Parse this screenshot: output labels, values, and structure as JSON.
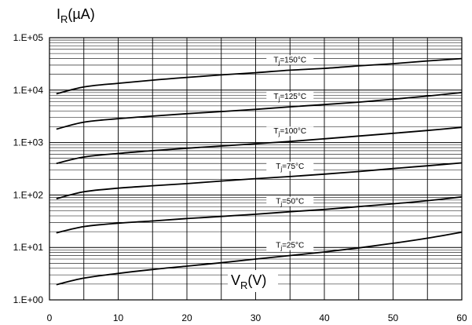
{
  "chart_data": {
    "type": "line",
    "title": "",
    "ylabel_main": "I",
    "ylabel_sub": "R",
    "ylabel_unit": "(µA)",
    "xlabel_main": "V",
    "xlabel_sub": "R",
    "xlabel_unit": "(V)",
    "y_scale": "log",
    "ylim": [
      1,
      100000
    ],
    "xlim": [
      0,
      60
    ],
    "grid": true,
    "x_ticks": [
      0,
      10,
      20,
      30,
      40,
      50,
      60
    ],
    "x_tick_labels": [
      "0",
      "10",
      "20",
      "30",
      "40",
      "50",
      "60"
    ],
    "y_ticks": [
      1,
      10,
      100,
      1000,
      10000,
      100000
    ],
    "y_tick_labels": [
      "1.E+00",
      "1.E+01",
      "1.E+02",
      "1.E+03",
      "1.E+04",
      "1.E+05"
    ],
    "series": [
      {
        "name": "Tj=150°C",
        "label_main": "T",
        "label_sub": "j",
        "label_rest": "=150°C",
        "label_x": 35,
        "x": [
          1,
          5,
          10,
          15,
          20,
          25,
          30,
          35,
          40,
          45,
          50,
          55,
          60
        ],
        "y": [
          8500,
          11500,
          13500,
          15500,
          17500,
          19500,
          21500,
          24000,
          26000,
          29000,
          32000,
          36000,
          40000
        ]
      },
      {
        "name": "Tj=125°C",
        "label_main": "T",
        "label_sub": "j",
        "label_rest": "=125°C",
        "label_x": 35,
        "x": [
          1,
          5,
          10,
          15,
          20,
          25,
          30,
          35,
          40,
          45,
          50,
          55,
          60
        ],
        "y": [
          1800,
          2450,
          2850,
          3200,
          3550,
          3900,
          4300,
          4800,
          5300,
          5900,
          6700,
          7700,
          9000
        ]
      },
      {
        "name": "Tj=100°C",
        "label_main": "T",
        "label_sub": "j",
        "label_rest": "=100°C",
        "label_x": 35,
        "x": [
          1,
          5,
          10,
          15,
          20,
          25,
          30,
          35,
          40,
          45,
          50,
          55,
          60
        ],
        "y": [
          400,
          530,
          620,
          700,
          780,
          860,
          950,
          1050,
          1180,
          1330,
          1500,
          1700,
          1950
        ]
      },
      {
        "name": "Tj=75°C",
        "label_main": "T",
        "label_sub": "j",
        "label_rest": "=75°C",
        "label_x": 35,
        "x": [
          1,
          5,
          10,
          15,
          20,
          25,
          30,
          35,
          40,
          45,
          50,
          55,
          60
        ],
        "y": [
          85,
          115,
          135,
          150,
          165,
          185,
          205,
          225,
          250,
          280,
          320,
          360,
          410
        ]
      },
      {
        "name": "Tj=50°C",
        "label_main": "T",
        "label_sub": "j",
        "label_rest": "=50°C",
        "label_x": 35,
        "x": [
          1,
          5,
          10,
          15,
          20,
          25,
          30,
          35,
          40,
          45,
          50,
          55,
          60
        ],
        "y": [
          19,
          25,
          29,
          32,
          35.5,
          39,
          43,
          48,
          53,
          60,
          68,
          78,
          92
        ]
      },
      {
        "name": "Tj=25°C",
        "label_main": "T",
        "label_sub": "j",
        "label_rest": "=25°C",
        "label_x": 35,
        "x": [
          1,
          5,
          10,
          15,
          20,
          25,
          30,
          35,
          40,
          45,
          50,
          55,
          60
        ],
        "y": [
          1.95,
          2.6,
          3.2,
          3.8,
          4.4,
          5.1,
          6.0,
          7.0,
          8.2,
          9.8,
          12,
          15,
          19.5
        ]
      }
    ]
  }
}
